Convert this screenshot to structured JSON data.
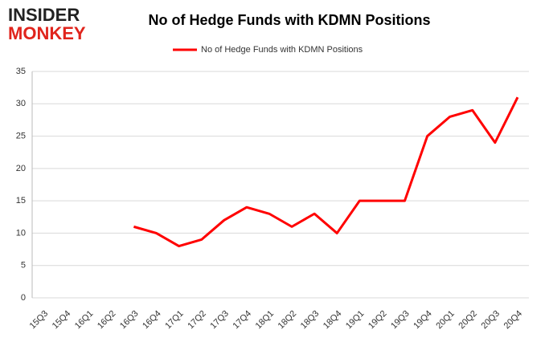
{
  "logo": {
    "line1": "INSIDER",
    "line2": "MONKEY"
  },
  "chart_data": {
    "type": "line",
    "title": "No of Hedge Funds with KDMN Positions",
    "categories": [
      "15Q3",
      "15Q4",
      "16Q1",
      "16Q2",
      "16Q3",
      "16Q4",
      "17Q1",
      "17Q2",
      "17Q3",
      "17Q4",
      "18Q1",
      "18Q2",
      "18Q3",
      "18Q4",
      "19Q1",
      "19Q2",
      "19Q3",
      "19Q4",
      "20Q1",
      "20Q2",
      "20Q3",
      "20Q4"
    ],
    "series": [
      {
        "name": "No of Hedge Funds with KDMN Positions",
        "color": "#ff0000",
        "values": [
          null,
          null,
          null,
          null,
          11,
          10,
          8,
          9,
          12,
          14,
          13,
          11,
          13,
          10,
          15,
          15,
          15,
          25,
          28,
          29,
          24,
          31
        ]
      }
    ],
    "ylim": [
      0,
      35
    ],
    "yticks": [
      0,
      5,
      10,
      15,
      20,
      25,
      30,
      35
    ],
    "grid": true,
    "legend": "top"
  }
}
